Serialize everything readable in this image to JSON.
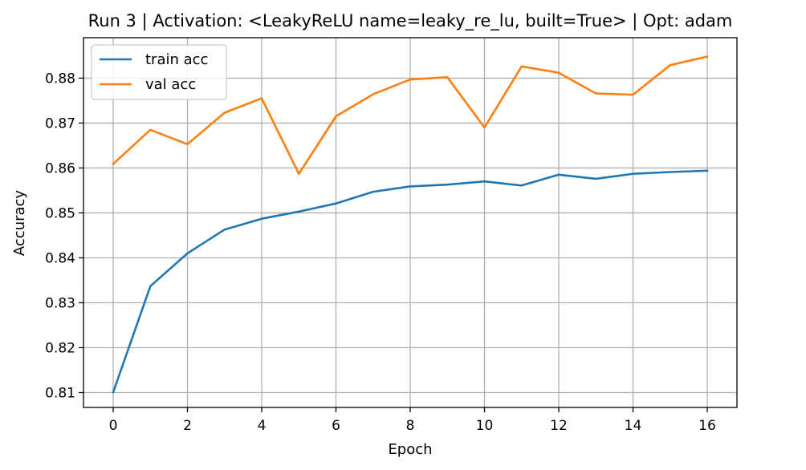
{
  "chart_data": {
    "type": "line",
    "title": "Run 3 | Activation: <LeakyReLU name=leaky_re_lu, built=True> | Opt: adam",
    "xlabel": "Epoch",
    "ylabel": "Accuracy",
    "xlim": [
      -0.8,
      16.8
    ],
    "ylim": [
      0.8067,
      0.889
    ],
    "xticks": [
      0,
      2,
      4,
      6,
      8,
      10,
      12,
      14,
      16
    ],
    "yticks": [
      0.81,
      0.82,
      0.83,
      0.84,
      0.85,
      0.86,
      0.87,
      0.88
    ],
    "grid": true,
    "legend_position": "upper-left",
    "x": [
      0,
      1,
      2,
      3,
      4,
      5,
      6,
      7,
      8,
      9,
      10,
      11,
      12,
      13,
      14,
      15,
      16
    ],
    "series": [
      {
        "name": "train acc",
        "color": "#1f77b4",
        "values": [
          0.8101,
          0.8337,
          0.841,
          0.8463,
          0.8487,
          0.8503,
          0.8521,
          0.8547,
          0.8559,
          0.8563,
          0.857,
          0.8561,
          0.8585,
          0.8576,
          0.8587,
          0.8591,
          0.8594
        ]
      },
      {
        "name": "val acc",
        "color": "#ff7f0e",
        "values": [
          0.8609,
          0.8685,
          0.8653,
          0.8723,
          0.8755,
          0.8587,
          0.8715,
          0.8764,
          0.8797,
          0.8802,
          0.869,
          0.8826,
          0.8812,
          0.8766,
          0.8763,
          0.8829,
          0.8848
        ]
      }
    ]
  }
}
